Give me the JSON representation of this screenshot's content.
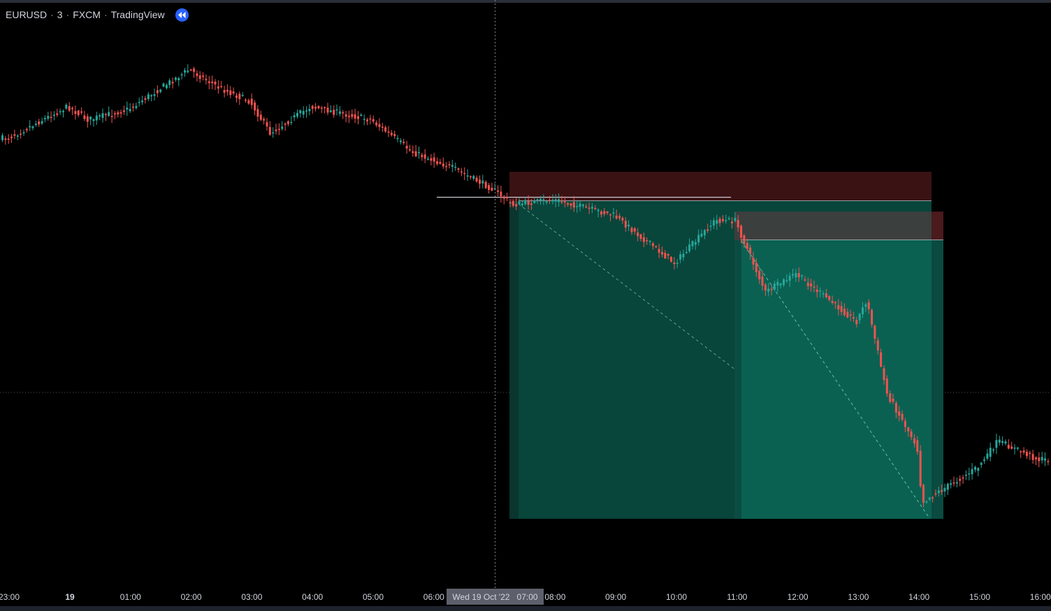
{
  "header": {
    "symbol": "EURUSD",
    "interval": "3",
    "exchange": "FXCM",
    "source": "TradingView",
    "separator": "·",
    "rewind_icon": "rewind-icon"
  },
  "crosshair": {
    "label": "Wed 19 Oct '22   07:00"
  },
  "colors": {
    "background": "#000000",
    "up": "#26a69a",
    "down": "#ef5350",
    "stop_zone": "#3a1214",
    "target_zone": "#08453a",
    "target_zone_2": "#0a6152",
    "stop_zone_2": "#3b3f3e",
    "axis_text": "#d1d4dc",
    "accent": "#2962ff"
  },
  "chart_data": {
    "type": "candlestick",
    "symbol": "EURUSD",
    "timeframe": "3",
    "x_tick_labels": [
      "23:00",
      "19",
      "01:00",
      "02:00",
      "03:00",
      "04:00",
      "05:00",
      "06:00",
      "07:00",
      "08:00",
      "09:00",
      "10:00",
      "11:00",
      "12:00",
      "13:00",
      "14:00",
      "15:00",
      "16:00"
    ],
    "x_tick_bold": [
      "19"
    ],
    "crosshair_time": "Wed 19 Oct '22 07:00",
    "price_path": [
      {
        "time": "23:00",
        "level": 0.61
      },
      {
        "time": "00:00",
        "level": 0.73
      },
      {
        "time": "00:20",
        "level": 0.68
      },
      {
        "time": "01:00",
        "level": 0.72
      },
      {
        "time": "02:00",
        "level": 0.87
      },
      {
        "time": "02:30",
        "level": 0.8
      },
      {
        "time": "03:00",
        "level": 0.75
      },
      {
        "time": "03:20",
        "level": 0.63
      },
      {
        "time": "04:00",
        "level": 0.73
      },
      {
        "time": "05:00",
        "level": 0.68
      },
      {
        "time": "05:40",
        "level": 0.56
      },
      {
        "time": "06:20",
        "level": 0.5
      },
      {
        "time": "07:00",
        "level": 0.42
      },
      {
        "time": "07:20",
        "level": 0.36
      },
      {
        "time": "08:00",
        "level": 0.38
      },
      {
        "time": "09:00",
        "level": 0.32
      },
      {
        "time": "10:00",
        "level": 0.14
      },
      {
        "time": "10:40",
        "level": 0.3
      },
      {
        "time": "11:00",
        "level": 0.3
      },
      {
        "time": "11:30",
        "level": 0.03
      },
      {
        "time": "12:00",
        "level": 0.1
      },
      {
        "time": "13:00",
        "level": -0.08
      },
      {
        "time": "13:10",
        "level": 0.0
      },
      {
        "time": "13:30",
        "level": -0.35
      },
      {
        "time": "14:00",
        "level": -0.55
      },
      {
        "time": "14:05",
        "level": -0.76
      },
      {
        "time": "15:00",
        "level": -0.63
      },
      {
        "time": "15:20",
        "level": -0.53
      },
      {
        "time": "16:00",
        "level": -0.6
      }
    ],
    "positions": [
      {
        "type": "short",
        "entry_time": "07:00",
        "end_time": "14:15"
      },
      {
        "type": "short",
        "entry_time": "11:00",
        "end_time": "14:25"
      }
    ]
  }
}
